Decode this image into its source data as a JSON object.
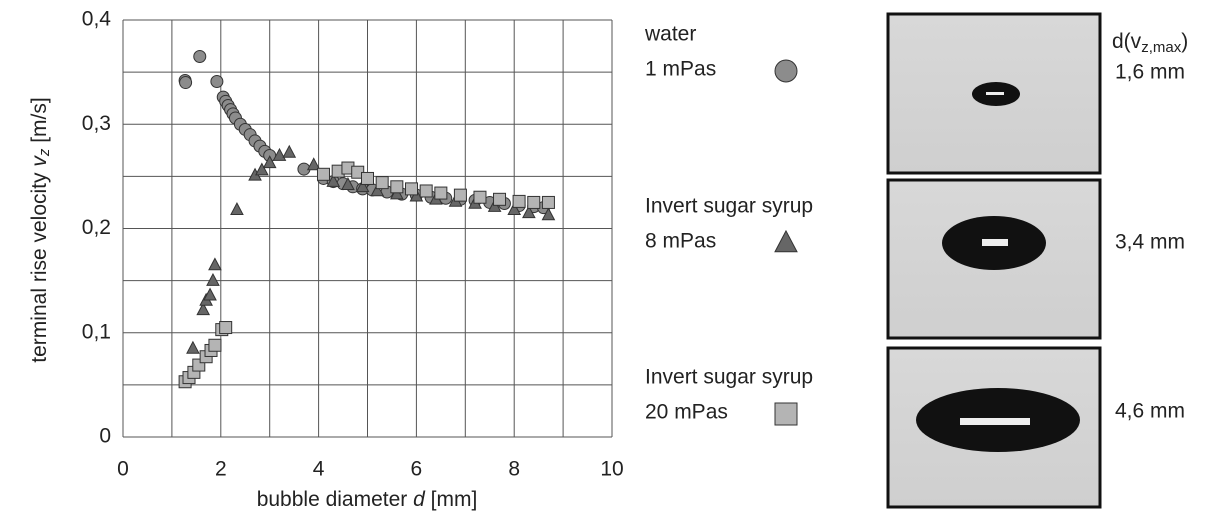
{
  "chart_data": {
    "type": "scatter",
    "xlabel": [
      "bubble diameter ",
      "d",
      " [mm]"
    ],
    "ylabel": [
      "terminal rise velocity ",
      "v",
      "z",
      " [m/s]"
    ],
    "xlim": [
      0,
      10
    ],
    "ylim": [
      0,
      0.4
    ],
    "xticks": [
      0,
      2,
      4,
      6,
      8,
      10
    ],
    "yticks": [
      {
        "value": 0,
        "label": "0"
      },
      {
        "value": 0.1,
        "label": "0,1"
      },
      {
        "value": 0.2,
        "label": "0,2"
      },
      {
        "value": 0.3,
        "label": "0,3"
      },
      {
        "value": 0.4,
        "label": "0,4"
      }
    ],
    "xgrid": [
      0,
      1,
      2,
      3,
      4,
      5,
      6,
      7,
      8,
      9,
      10
    ],
    "ygrid": [
      0,
      0.05,
      0.1,
      0.15,
      0.2,
      0.25,
      0.3,
      0.35,
      0.4
    ],
    "series": [
      {
        "name": "water",
        "viscosity": "1 mPas",
        "marker": "circle",
        "color": "#8c8c8c",
        "x": [
          1.27,
          1.28,
          1.57,
          1.92,
          2.05,
          2.1,
          2.15,
          2.2,
          2.25,
          2.3,
          2.4,
          2.5,
          2.6,
          2.7,
          2.8,
          2.9,
          3.0,
          3.7,
          4.1,
          4.3,
          4.5,
          4.7,
          4.9,
          5.1,
          5.4,
          5.7,
          6.0,
          6.3,
          6.6,
          6.9,
          7.2,
          7.5,
          7.8,
          8.1,
          8.4,
          8.6
        ],
        "values": [
          0.342,
          0.34,
          0.365,
          0.341,
          0.326,
          0.322,
          0.318,
          0.314,
          0.31,
          0.306,
          0.3,
          0.295,
          0.29,
          0.284,
          0.279,
          0.274,
          0.27,
          0.257,
          0.248,
          0.245,
          0.243,
          0.24,
          0.238,
          0.237,
          0.235,
          0.233,
          0.232,
          0.23,
          0.229,
          0.228,
          0.227,
          0.225,
          0.224,
          0.222,
          0.221,
          0.22
        ]
      },
      {
        "name": "Invert sugar syrup",
        "viscosity": "8 mPas",
        "marker": "triangle",
        "color": "#666666",
        "x": [
          1.43,
          1.64,
          1.7,
          1.78,
          1.84,
          1.88,
          2.33,
          2.7,
          2.84,
          3.0,
          3.2,
          3.4,
          3.9,
          4.3,
          4.6,
          4.9,
          5.2,
          5.6,
          6.0,
          6.4,
          6.8,
          7.2,
          7.6,
          8.0,
          8.3,
          8.7
        ],
        "values": [
          0.085,
          0.122,
          0.131,
          0.136,
          0.15,
          0.165,
          0.218,
          0.251,
          0.256,
          0.263,
          0.27,
          0.273,
          0.261,
          0.245,
          0.242,
          0.24,
          0.236,
          0.233,
          0.231,
          0.228,
          0.226,
          0.224,
          0.221,
          0.218,
          0.215,
          0.213
        ]
      },
      {
        "name": "Invert sugar syrup",
        "viscosity": "20 mPas",
        "marker": "square",
        "color": "#b4b4b4",
        "x": [
          1.27,
          1.35,
          1.45,
          1.55,
          1.7,
          1.8,
          1.88,
          2.02,
          2.1,
          4.1,
          4.4,
          4.6,
          4.8,
          5.0,
          5.3,
          5.6,
          5.9,
          6.2,
          6.5,
          6.9,
          7.3,
          7.7,
          8.1,
          8.4,
          8.7
        ],
        "values": [
          0.053,
          0.057,
          0.062,
          0.069,
          0.077,
          0.083,
          0.088,
          0.103,
          0.105,
          0.252,
          0.255,
          0.258,
          0.254,
          0.248,
          0.244,
          0.24,
          0.238,
          0.236,
          0.234,
          0.232,
          0.23,
          0.228,
          0.226,
          0.225,
          0.225
        ]
      }
    ]
  },
  "images": {
    "header": [
      "d(v",
      "z,max",
      ")"
    ],
    "labels": [
      "1,6 mm",
      "3,4 mm",
      "4,6 mm"
    ]
  }
}
